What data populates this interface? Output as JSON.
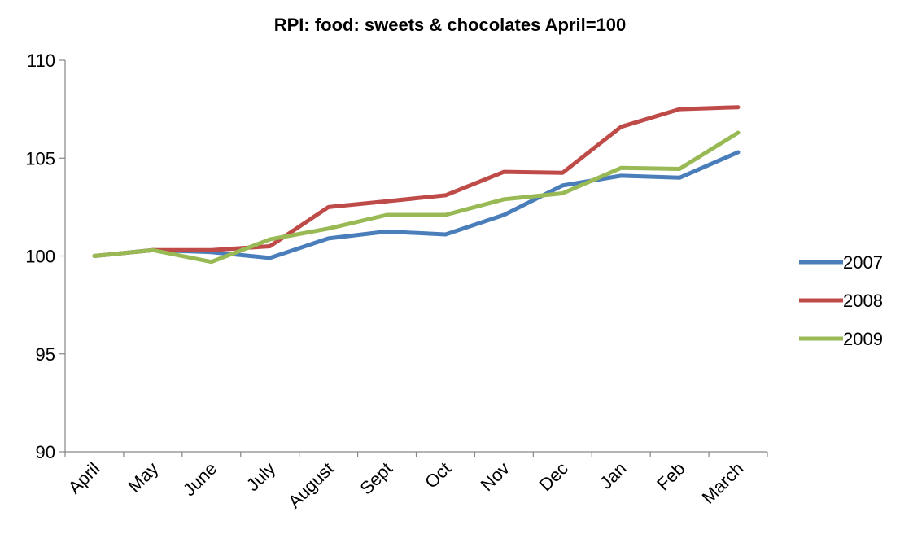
{
  "chart_data": {
    "type": "line",
    "title": "RPI: food: sweets & chocolates  April=100",
    "xlabel": "",
    "ylabel": "",
    "categories": [
      "April",
      "May",
      "June",
      "July",
      "August",
      "Sept",
      "Oct",
      "Nov",
      "Dec",
      "Jan",
      "Feb",
      "March"
    ],
    "ylim": [
      90,
      110
    ],
    "yticks": [
      "90",
      "95",
      "100",
      "105",
      "110"
    ],
    "grid": false,
    "legend_position": "right",
    "series": [
      {
        "name": "2007",
        "color": "#4a7ebb",
        "values": [
          100.0,
          100.3,
          100.2,
          99.9,
          100.9,
          101.25,
          101.1,
          102.1,
          103.6,
          104.1,
          104.0,
          105.3
        ]
      },
      {
        "name": "2008",
        "color": "#be4b48",
        "values": [
          100.0,
          100.3,
          100.3,
          100.5,
          102.5,
          102.8,
          103.1,
          104.3,
          104.25,
          106.6,
          107.5,
          107.6
        ]
      },
      {
        "name": "2009",
        "color": "#98b954",
        "values": [
          100.0,
          100.3,
          99.7,
          100.85,
          101.4,
          102.1,
          102.1,
          102.9,
          103.2,
          104.5,
          104.45,
          106.3
        ]
      }
    ]
  }
}
